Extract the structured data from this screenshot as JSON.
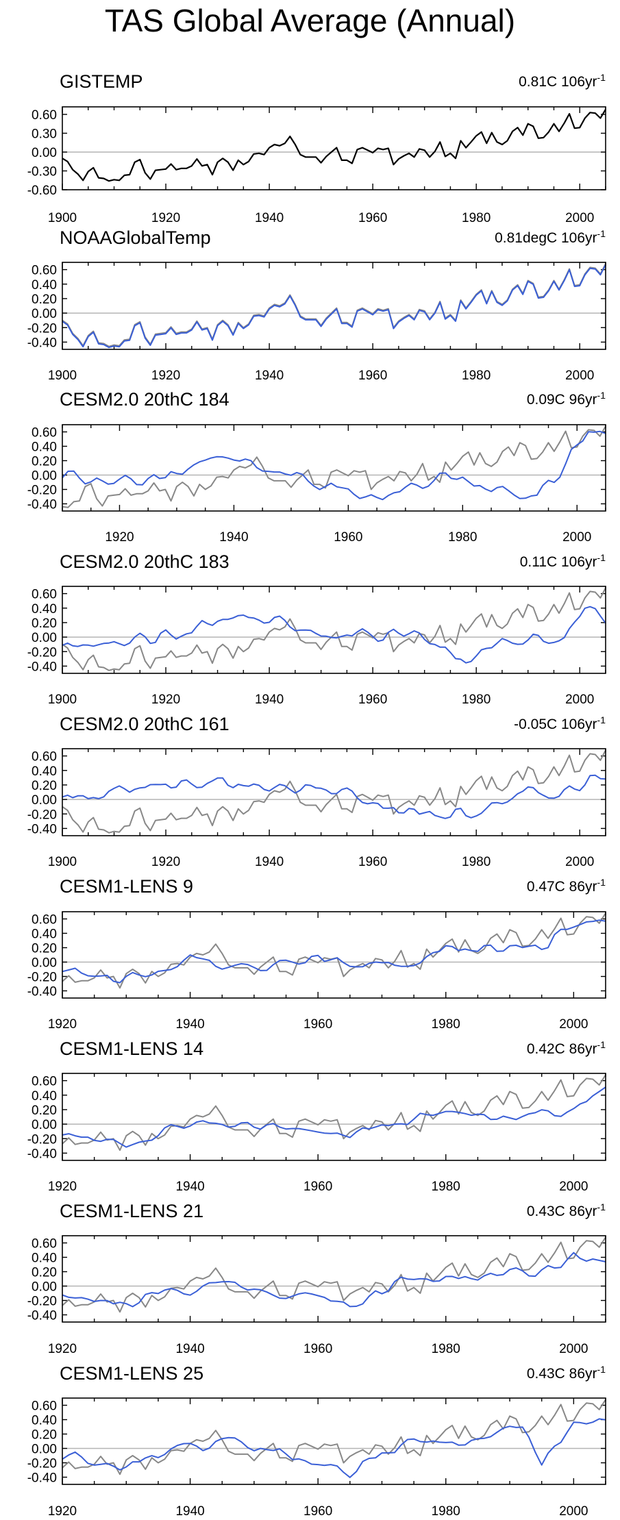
{
  "page": {
    "title": "TAS Global Average (Annual)"
  },
  "colors": {
    "observed": "#000000",
    "reference": "#888888",
    "model": "#3a5fd6",
    "zero_line": "#b4b4b4"
  },
  "chart_data": [
    {
      "type": "line",
      "title": "GISTEMP",
      "trend_value": "0.81C 106",
      "trend_unit": "yr",
      "trend_exp": "-1",
      "xlim": [
        1900,
        2005
      ],
      "ylim": [
        -0.6,
        0.72
      ],
      "yticks": [
        -0.6,
        -0.3,
        0.0,
        0.3,
        0.6
      ],
      "ytick_labels": [
        "-0.60",
        "-0.30",
        "0.00",
        "0.30",
        "0.60"
      ],
      "xticks": [
        1900,
        1920,
        1940,
        1960,
        1980,
        2000
      ],
      "xtick_labels": [
        "1900",
        "1920",
        "1940",
        "1960",
        "1980",
        "2000"
      ],
      "series": [
        {
          "name": "GISTEMP",
          "role": "observed",
          "model": false
        }
      ]
    },
    {
      "type": "line",
      "title": "NOAAGlobalTemp",
      "trend_value": "0.81degC 106",
      "trend_unit": "yr",
      "trend_exp": "-1",
      "xlim": [
        1900,
        2005
      ],
      "ylim": [
        -0.5,
        0.7
      ],
      "yticks": [
        -0.4,
        -0.2,
        0.0,
        0.2,
        0.4,
        0.6
      ],
      "ytick_labels": [
        "-0.40",
        "-0.20",
        "0.00",
        "0.20",
        "0.40",
        "0.60"
      ],
      "xticks": [
        1900,
        1920,
        1940,
        1960,
        1980,
        2000
      ],
      "xtick_labels": [
        "1900",
        "1920",
        "1940",
        "1960",
        "1980",
        "2000"
      ],
      "series": [
        {
          "name": "GISTEMP",
          "role": "reference",
          "model": false
        },
        {
          "name": "NOAAGlobalTemp",
          "role": "model",
          "model": false
        }
      ]
    },
    {
      "type": "line",
      "title": "CESM2.0 20thC 184",
      "trend_value": "0.09C 96",
      "trend_unit": "yr",
      "trend_exp": "-1",
      "xlim": [
        1910,
        2005
      ],
      "ylim": [
        -0.5,
        0.7
      ],
      "yticks": [
        -0.4,
        -0.2,
        0.0,
        0.2,
        0.4,
        0.6
      ],
      "ytick_labels": [
        "-0.40",
        "-0.20",
        "0.00",
        "0.20",
        "0.40",
        "0.60"
      ],
      "xticks": [
        1920,
        1940,
        1960,
        1980,
        2000
      ],
      "xtick_labels": [
        "1920",
        "1940",
        "1960",
        "1980",
        "2000"
      ],
      "series": [
        {
          "name": "GISTEMP",
          "role": "reference",
          "model": false
        },
        {
          "name": "CESM2.0 20thC 184",
          "role": "model",
          "model": true
        }
      ]
    },
    {
      "type": "line",
      "title": "CESM2.0 20thC 183",
      "trend_value": "0.11C 106",
      "trend_unit": "yr",
      "trend_exp": "-1",
      "xlim": [
        1900,
        2005
      ],
      "ylim": [
        -0.5,
        0.7
      ],
      "yticks": [
        -0.4,
        -0.2,
        0.0,
        0.2,
        0.4,
        0.6
      ],
      "ytick_labels": [
        "-0.40",
        "-0.20",
        "0.00",
        "0.20",
        "0.40",
        "0.60"
      ],
      "xticks": [
        1900,
        1920,
        1940,
        1960,
        1980,
        2000
      ],
      "xtick_labels": [
        "1900",
        "1920",
        "1940",
        "1960",
        "1980",
        "2000"
      ],
      "series": [
        {
          "name": "GISTEMP",
          "role": "reference",
          "model": false
        },
        {
          "name": "CESM2.0 20thC 183",
          "role": "model",
          "model": true
        }
      ]
    },
    {
      "type": "line",
      "title": "CESM2.0 20thC 161",
      "trend_value": "-0.05C 106",
      "trend_unit": "yr",
      "trend_exp": "-1",
      "xlim": [
        1900,
        2005
      ],
      "ylim": [
        -0.5,
        0.7
      ],
      "yticks": [
        -0.4,
        -0.2,
        0.0,
        0.2,
        0.4,
        0.6
      ],
      "ytick_labels": [
        "-0.40",
        "-0.20",
        "0.00",
        "0.20",
        "0.40",
        "0.60"
      ],
      "xticks": [
        1900,
        1920,
        1940,
        1960,
        1980,
        2000
      ],
      "xtick_labels": [
        "1900",
        "1920",
        "1940",
        "1960",
        "1980",
        "2000"
      ],
      "series": [
        {
          "name": "GISTEMP",
          "role": "reference",
          "model": false
        },
        {
          "name": "CESM2.0 20thC 161",
          "role": "model",
          "model": true
        }
      ]
    },
    {
      "type": "line",
      "title": "CESM1-LENS 9",
      "trend_value": "0.47C 86",
      "trend_unit": "yr",
      "trend_exp": "-1",
      "xlim": [
        1920,
        2005
      ],
      "ylim": [
        -0.5,
        0.7
      ],
      "yticks": [
        -0.4,
        -0.2,
        0.0,
        0.2,
        0.4,
        0.6
      ],
      "ytick_labels": [
        "-0.40",
        "-0.20",
        "0.00",
        "0.20",
        "0.40",
        "0.60"
      ],
      "xticks": [
        1920,
        1940,
        1960,
        1980,
        2000
      ],
      "xtick_labels": [
        "1920",
        "1940",
        "1960",
        "1980",
        "2000"
      ],
      "series": [
        {
          "name": "GISTEMP",
          "role": "reference",
          "model": false
        },
        {
          "name": "CESM1-LENS 9",
          "role": "model",
          "model": true
        }
      ]
    },
    {
      "type": "line",
      "title": "CESM1-LENS 14",
      "trend_value": "0.42C 86",
      "trend_unit": "yr",
      "trend_exp": "-1",
      "xlim": [
        1920,
        2005
      ],
      "ylim": [
        -0.5,
        0.7
      ],
      "yticks": [
        -0.4,
        -0.2,
        0.0,
        0.2,
        0.4,
        0.6
      ],
      "ytick_labels": [
        "-0.40",
        "-0.20",
        "0.00",
        "0.20",
        "0.40",
        "0.60"
      ],
      "xticks": [
        1920,
        1940,
        1960,
        1980,
        2000
      ],
      "xtick_labels": [
        "1920",
        "1940",
        "1960",
        "1980",
        "2000"
      ],
      "series": [
        {
          "name": "GISTEMP",
          "role": "reference",
          "model": false
        },
        {
          "name": "CESM1-LENS 14",
          "role": "model",
          "model": true
        }
      ]
    },
    {
      "type": "line",
      "title": "CESM1-LENS 21",
      "trend_value": "0.43C 86",
      "trend_unit": "yr",
      "trend_exp": "-1",
      "xlim": [
        1920,
        2005
      ],
      "ylim": [
        -0.5,
        0.7
      ],
      "yticks": [
        -0.4,
        -0.2,
        0.0,
        0.2,
        0.4,
        0.6
      ],
      "ytick_labels": [
        "-0.40",
        "-0.20",
        "0.00",
        "0.20",
        "0.40",
        "0.60"
      ],
      "xticks": [
        1920,
        1940,
        1960,
        1980,
        2000
      ],
      "xtick_labels": [
        "1920",
        "1940",
        "1960",
        "1980",
        "2000"
      ],
      "series": [
        {
          "name": "GISTEMP",
          "role": "reference",
          "model": false
        },
        {
          "name": "CESM1-LENS 21",
          "role": "model",
          "model": true
        }
      ]
    },
    {
      "type": "line",
      "title": "CESM1-LENS 25",
      "trend_value": "0.43C 86",
      "trend_unit": "yr",
      "trend_exp": "-1",
      "xlim": [
        1920,
        2005
      ],
      "ylim": [
        -0.5,
        0.7
      ],
      "yticks": [
        -0.4,
        -0.2,
        0.0,
        0.2,
        0.4,
        0.6
      ],
      "ytick_labels": [
        "-0.40",
        "-0.20",
        "0.00",
        "0.20",
        "0.40",
        "0.60"
      ],
      "xticks": [
        1920,
        1940,
        1960,
        1980,
        2000
      ],
      "xtick_labels": [
        "1920",
        "1940",
        "1960",
        "1980",
        "2000"
      ],
      "series": [
        {
          "name": "GISTEMP",
          "role": "reference",
          "model": false
        },
        {
          "name": "CESM1-LENS 25",
          "role": "model",
          "model": true
        }
      ]
    }
  ]
}
